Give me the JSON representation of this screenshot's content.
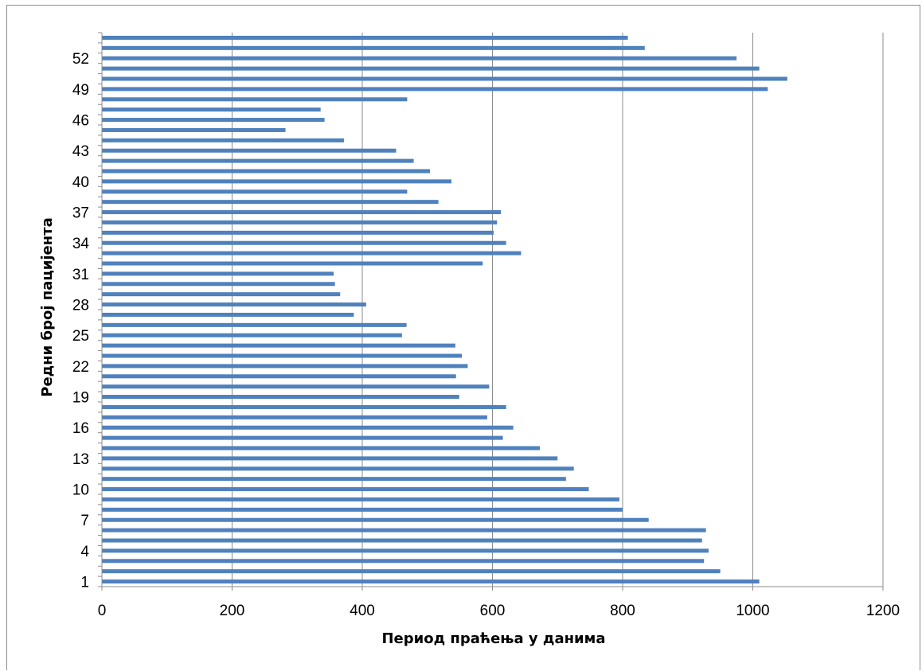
{
  "chart_data": {
    "type": "bar",
    "orientation": "horizontal",
    "xlabel": "Период праћења у данима",
    "ylabel": "Редни број пацијента",
    "xlim": [
      0,
      1200
    ],
    "xticks": [
      "0",
      "200",
      "400",
      "600",
      "800",
      "1000",
      "1200"
    ],
    "categories": [
      "1",
      "2",
      "3",
      "4",
      "5",
      "6",
      "7",
      "8",
      "9",
      "10",
      "11",
      "12",
      "13",
      "14",
      "15",
      "16",
      "17",
      "18",
      "19",
      "20",
      "21",
      "22",
      "23",
      "24",
      "25",
      "26",
      "27",
      "28",
      "29",
      "30",
      "31",
      "32",
      "33",
      "34",
      "35",
      "36",
      "37",
      "38",
      "39",
      "40",
      "41",
      "42",
      "43",
      "44",
      "45",
      "46",
      "47",
      "48",
      "49",
      "50",
      "51",
      "52",
      "53",
      "54"
    ],
    "yticks_shown": [
      "1",
      "4",
      "7",
      "10",
      "13",
      "16",
      "19",
      "22",
      "25",
      "28",
      "31",
      "34",
      "37",
      "40",
      "43",
      "46",
      "49",
      "52"
    ],
    "values": [
      1010,
      950,
      925,
      932,
      922,
      928,
      840,
      800,
      795,
      748,
      713,
      725,
      700,
      673,
      616,
      632,
      592,
      621,
      549,
      595,
      544,
      562,
      553,
      543,
      461,
      468,
      387,
      406,
      366,
      358,
      356,
      585,
      644,
      621,
      602,
      607,
      613,
      517,
      469,
      537,
      504,
      479,
      452,
      372,
      282,
      342,
      336,
      469,
      1023,
      1053,
      1010,
      975,
      834,
      808
    ],
    "bar_color": "#4f81bd",
    "grid": "vertical major gridlines",
    "legend": "none"
  }
}
